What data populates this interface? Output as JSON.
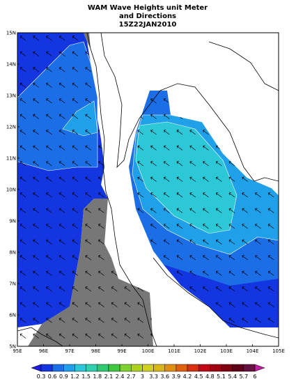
{
  "title_lines": [
    "WAM Wave Heights unit Meter",
    "and Directions",
    "15Z22JAN2010"
  ],
  "x_ticks": [
    {
      "value": 95,
      "label": "95E"
    },
    {
      "value": 96,
      "label": "96E"
    },
    {
      "value": 97,
      "label": "97E"
    },
    {
      "value": 98,
      "label": "98E"
    },
    {
      "value": 99,
      "label": "99E"
    },
    {
      "value": 100,
      "label": "100E"
    },
    {
      "value": 101,
      "label": "101E"
    },
    {
      "value": 102,
      "label": "102E"
    },
    {
      "value": 103,
      "label": "103E"
    },
    {
      "value": 104,
      "label": "104E"
    },
    {
      "value": 105,
      "label": "105E"
    }
  ],
  "y_ticks": [
    {
      "value": 5,
      "label": "5N"
    },
    {
      "value": 6,
      "label": "6N"
    },
    {
      "value": 7,
      "label": "7N"
    },
    {
      "value": 8,
      "label": "8N"
    },
    {
      "value": 9,
      "label": "9N"
    },
    {
      "value": 10,
      "label": "10N"
    },
    {
      "value": 11,
      "label": "11N"
    },
    {
      "value": 12,
      "label": "12N"
    },
    {
      "value": 13,
      "label": "13N"
    },
    {
      "value": 14,
      "label": "14N"
    },
    {
      "value": 15,
      "label": "15N"
    }
  ],
  "xlim": [
    95,
    105
  ],
  "ylim": [
    5,
    15
  ],
  "colorbar": {
    "labels": [
      0.3,
      0.6,
      0.9,
      1.2,
      1.5,
      1.8,
      2.1,
      2.4,
      2.7,
      3,
      3.3,
      3.6,
      3.9,
      4.2,
      4.5,
      4.8,
      5.1,
      5.4,
      5.7,
      6
    ],
    "colors": [
      "#1c1ce0",
      "#1436e0",
      "#1c6ee6",
      "#20a0e8",
      "#2cc8d8",
      "#30d0b0",
      "#30c870",
      "#40c840",
      "#80d030",
      "#b0d020",
      "#d0d020",
      "#d8b818",
      "#e09010",
      "#e06010",
      "#d83010",
      "#c00818",
      "#a00010",
      "#800010",
      "#600018",
      "#681040",
      "#c020a0"
    ]
  }
}
